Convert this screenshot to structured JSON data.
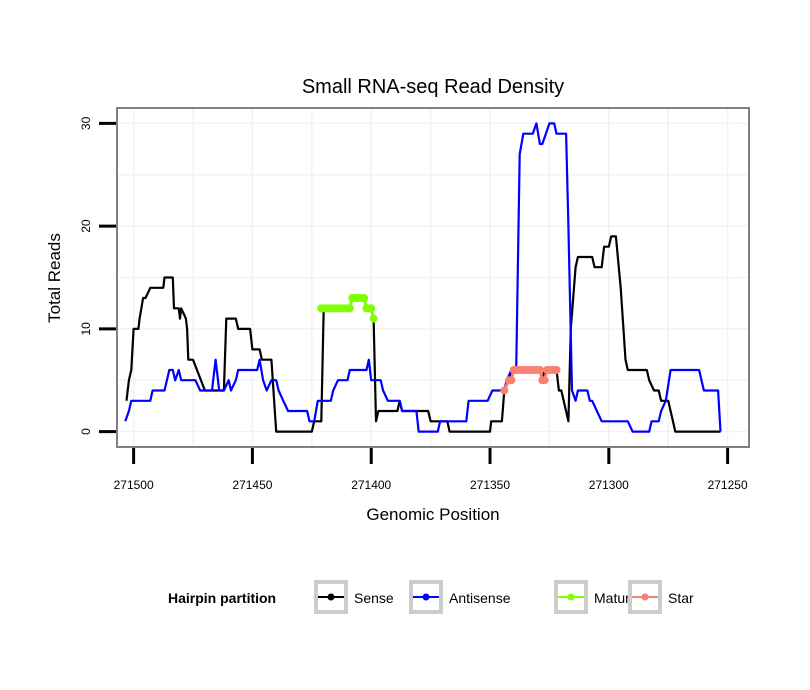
{
  "chart_data": {
    "type": "line",
    "title": "Small RNA-seq Read Density",
    "xlabel": "Genomic Position",
    "ylabel": "Total Reads",
    "x_reversed": true,
    "xlim": [
      271507,
      271241
    ],
    "ylim": [
      -1.5,
      31.5
    ],
    "x_ticks": [
      271500,
      271450,
      271400,
      271350,
      271300,
      271250
    ],
    "x_tick_labels": [
      "271500",
      "271450",
      "271400",
      "271350",
      "271300",
      "271250"
    ],
    "y_ticks": [
      0,
      10,
      20,
      30
    ],
    "y_tick_labels": [
      "0",
      "10",
      "20",
      "30"
    ],
    "grid": true,
    "legend": {
      "title": "Hairpin partition",
      "position": "bottom",
      "entries": [
        "Sense",
        "Antisense",
        "Mature",
        "Star"
      ]
    },
    "series": [
      {
        "name": "Sense",
        "color": "#000000",
        "markers": false,
        "points": [
          [
            271503,
            3
          ],
          [
            271502,
            5
          ],
          [
            271501,
            6
          ],
          [
            271500,
            10
          ],
          [
            271498,
            10
          ],
          [
            271497.5,
            11
          ],
          [
            271496,
            13
          ],
          [
            271495,
            13
          ],
          [
            271493,
            14
          ],
          [
            271487.5,
            14
          ],
          [
            271487,
            15
          ],
          [
            271483.5,
            15
          ],
          [
            271483,
            12
          ],
          [
            271481,
            12
          ],
          [
            271480.5,
            11
          ],
          [
            271480,
            12
          ],
          [
            271478,
            11
          ],
          [
            271477.5,
            10
          ],
          [
            271477,
            7
          ],
          [
            271475,
            7
          ],
          [
            271470,
            4
          ],
          [
            271462,
            4
          ],
          [
            271461,
            11
          ],
          [
            271457,
            11
          ],
          [
            271456,
            10
          ],
          [
            271451,
            10
          ],
          [
            271450,
            8
          ],
          [
            271447,
            8
          ],
          [
            271446,
            7
          ],
          [
            271442,
            7
          ],
          [
            271440,
            0
          ],
          [
            271425,
            0
          ],
          [
            271424,
            1
          ],
          [
            271421,
            1
          ],
          [
            271420,
            12
          ],
          [
            271409,
            12
          ],
          [
            271408,
            13
          ],
          [
            271403,
            13
          ],
          [
            271402,
            12
          ],
          [
            271400,
            12
          ],
          [
            271399,
            11
          ],
          [
            271398,
            1
          ],
          [
            271397,
            2
          ],
          [
            271389,
            2
          ],
          [
            271388,
            3
          ],
          [
            271387,
            2
          ],
          [
            271376,
            2
          ],
          [
            271375,
            1
          ],
          [
            271368,
            1
          ],
          [
            271367,
            0
          ],
          [
            271350,
            0
          ],
          [
            271349.5,
            1
          ],
          [
            271345,
            1
          ],
          [
            271344,
            4
          ],
          [
            271342,
            5
          ],
          [
            271340,
            6
          ],
          [
            271329,
            6
          ],
          [
            271328,
            5
          ],
          [
            271327,
            6
          ],
          [
            271322,
            6
          ],
          [
            271321,
            4
          ],
          [
            271320,
            4
          ],
          [
            271317,
            1
          ],
          [
            271316,
            10
          ],
          [
            271314,
            16
          ],
          [
            271313,
            17
          ],
          [
            271307,
            17
          ],
          [
            271306,
            16
          ],
          [
            271303,
            16
          ],
          [
            271302,
            18
          ],
          [
            271300,
            18
          ],
          [
            271299,
            19
          ],
          [
            271297,
            19
          ],
          [
            271295,
            14
          ],
          [
            271293,
            7
          ],
          [
            271292,
            6
          ],
          [
            271284,
            6
          ],
          [
            271283,
            5
          ],
          [
            271281,
            4
          ],
          [
            271279,
            4
          ],
          [
            271278,
            3
          ],
          [
            271275,
            3
          ],
          [
            271274,
            2
          ],
          [
            271272,
            0
          ],
          [
            271253,
            0
          ]
        ]
      },
      {
        "name": "Antisense",
        "color": "#0000FF",
        "markers": false,
        "points": [
          [
            271503.5,
            1
          ],
          [
            271502,
            2
          ],
          [
            271501,
            3
          ],
          [
            271493,
            3
          ],
          [
            271492,
            4
          ],
          [
            271487,
            4
          ],
          [
            271485,
            6
          ],
          [
            271483.5,
            6
          ],
          [
            271482.5,
            5
          ],
          [
            271481,
            6
          ],
          [
            271480,
            5
          ],
          [
            271474,
            5
          ],
          [
            271472,
            4
          ],
          [
            271467,
            4
          ],
          [
            271465.5,
            7
          ],
          [
            271464,
            4
          ],
          [
            271462,
            4
          ],
          [
            271460,
            5
          ],
          [
            271459,
            4
          ],
          [
            271457,
            5
          ],
          [
            271456,
            6
          ],
          [
            271448,
            6
          ],
          [
            271447,
            7
          ],
          [
            271445.5,
            5
          ],
          [
            271444,
            4
          ],
          [
            271442,
            5
          ],
          [
            271440,
            5
          ],
          [
            271439,
            4
          ],
          [
            271437,
            3
          ],
          [
            271435,
            2
          ],
          [
            271427,
            2
          ],
          [
            271426,
            1
          ],
          [
            271424,
            1
          ],
          [
            271422.5,
            3
          ],
          [
            271417,
            3
          ],
          [
            271416,
            4
          ],
          [
            271414,
            5
          ],
          [
            271410,
            5
          ],
          [
            271409,
            6
          ],
          [
            271402,
            6
          ],
          [
            271401,
            7
          ],
          [
            271400,
            5
          ],
          [
            271396,
            5
          ],
          [
            271395,
            4
          ],
          [
            271393,
            3
          ],
          [
            271388,
            3
          ],
          [
            271387,
            2
          ],
          [
            271381,
            2
          ],
          [
            271380,
            0
          ],
          [
            271372,
            0
          ],
          [
            271371,
            1
          ],
          [
            271360,
            1
          ],
          [
            271359,
            3
          ],
          [
            271351,
            3
          ],
          [
            271349,
            4
          ],
          [
            271344,
            4
          ],
          [
            271343,
            5
          ],
          [
            271341,
            6
          ],
          [
            271339,
            6
          ],
          [
            271337.5,
            27
          ],
          [
            271336,
            29
          ],
          [
            271332,
            29
          ],
          [
            271330.5,
            30
          ],
          [
            271329,
            28
          ],
          [
            271328,
            28
          ],
          [
            271326.5,
            29
          ],
          [
            271325,
            30
          ],
          [
            271323,
            30
          ],
          [
            271322,
            29
          ],
          [
            271318,
            29
          ],
          [
            271317,
            20
          ],
          [
            271315.5,
            4
          ],
          [
            271314,
            3
          ],
          [
            271313,
            4
          ],
          [
            271309,
            4
          ],
          [
            271308,
            3
          ],
          [
            271307,
            3
          ],
          [
            271305,
            2
          ],
          [
            271303,
            1
          ],
          [
            271292,
            1
          ],
          [
            271290,
            0
          ],
          [
            271283,
            0
          ],
          [
            271282,
            1
          ],
          [
            271279,
            1
          ],
          [
            271278,
            2
          ],
          [
            271276,
            3
          ],
          [
            271274,
            6
          ],
          [
            271262,
            6
          ],
          [
            271260,
            4
          ],
          [
            271254,
            4
          ],
          [
            271253,
            0
          ]
        ]
      },
      {
        "name": "Mature",
        "color": "#7FFF00",
        "markers": true,
        "points": [
          [
            271421,
            12
          ],
          [
            271420,
            12
          ],
          [
            271419,
            12
          ],
          [
            271418,
            12
          ],
          [
            271417,
            12
          ],
          [
            271416,
            12
          ],
          [
            271415,
            12
          ],
          [
            271414,
            12
          ],
          [
            271413,
            12
          ],
          [
            271412,
            12
          ],
          [
            271411,
            12
          ],
          [
            271410,
            12
          ],
          [
            271409,
            12
          ],
          [
            271408,
            13
          ],
          [
            271407,
            13
          ],
          [
            271406,
            13
          ],
          [
            271405,
            13
          ],
          [
            271404,
            13
          ],
          [
            271403,
            13
          ],
          [
            271402,
            12
          ],
          [
            271401,
            12
          ],
          [
            271400,
            12
          ],
          [
            271399,
            11
          ]
        ]
      },
      {
        "name": "Star",
        "color": "#FA8072",
        "markers": true,
        "points": [
          [
            271344,
            4
          ],
          [
            271342,
            5
          ],
          [
            271341,
            5
          ],
          [
            271340,
            6
          ],
          [
            271339,
            6
          ],
          [
            271338,
            6
          ],
          [
            271337,
            6
          ],
          [
            271336,
            6
          ],
          [
            271335,
            6
          ],
          [
            271334,
            6
          ],
          [
            271333,
            6
          ],
          [
            271332,
            6
          ],
          [
            271331,
            6
          ],
          [
            271330,
            6
          ],
          [
            271329,
            6
          ],
          [
            271328,
            5
          ],
          [
            271327,
            5
          ],
          [
            271326,
            6
          ],
          [
            271325,
            6
          ],
          [
            271324,
            6
          ],
          [
            271323,
            6
          ],
          [
            271322,
            6
          ]
        ]
      }
    ]
  }
}
